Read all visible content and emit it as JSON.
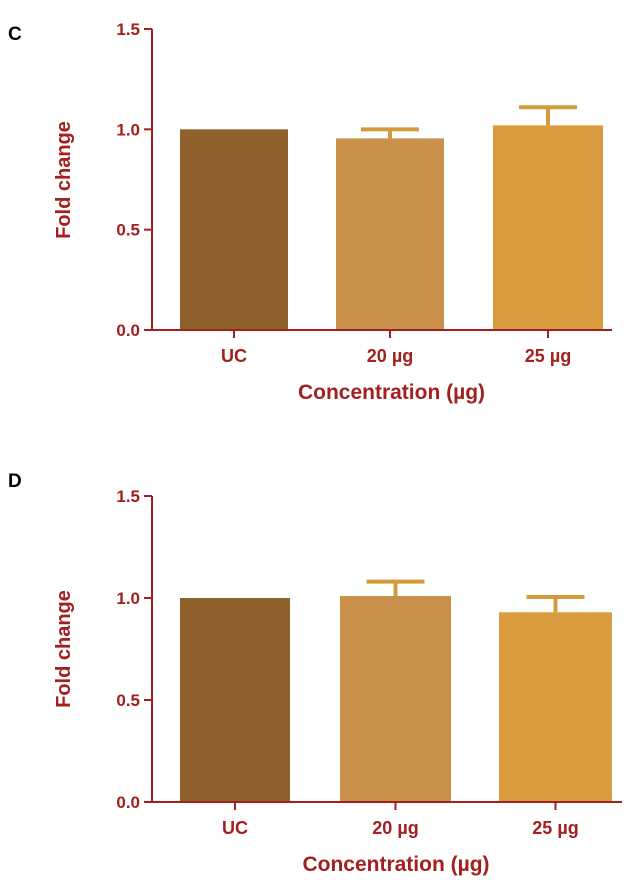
{
  "colors": {
    "axis": "#a3201f",
    "text": "#a3201f",
    "panel_label": "#000000",
    "error_bar": "#d59a3c",
    "bars": [
      "#8e612a",
      "#c9904c",
      "#d99c3e"
    ]
  },
  "chart_data": [
    {
      "type": "bar",
      "panel_label": "C",
      "categories": [
        "UC",
        "20 µg",
        "25 µg"
      ],
      "values": [
        1.0,
        0.955,
        1.02
      ],
      "errors": [
        0.0,
        0.045,
        0.09
      ],
      "ylabel": "Fold change",
      "xlabel": "Concentration (µg)",
      "ylim": [
        0,
        1.5
      ],
      "yticks": [
        "0.0",
        "0.5",
        "1.0",
        "1.5"
      ],
      "ytick_values": [
        0,
        0.5,
        1.0,
        1.5
      ]
    },
    {
      "type": "bar",
      "panel_label": "D",
      "categories": [
        "UC",
        "20 µg",
        "25 µg"
      ],
      "values": [
        1.0,
        1.01,
        0.93
      ],
      "errors": [
        0.0,
        0.07,
        0.075
      ],
      "ylabel": "Fold change",
      "xlabel": "Concentration (µg)",
      "ylim": [
        0,
        1.5
      ],
      "yticks": [
        "0.0",
        "0.5",
        "1.0",
        "1.5"
      ],
      "ytick_values": [
        0,
        0.5,
        1.0,
        1.5
      ]
    }
  ]
}
